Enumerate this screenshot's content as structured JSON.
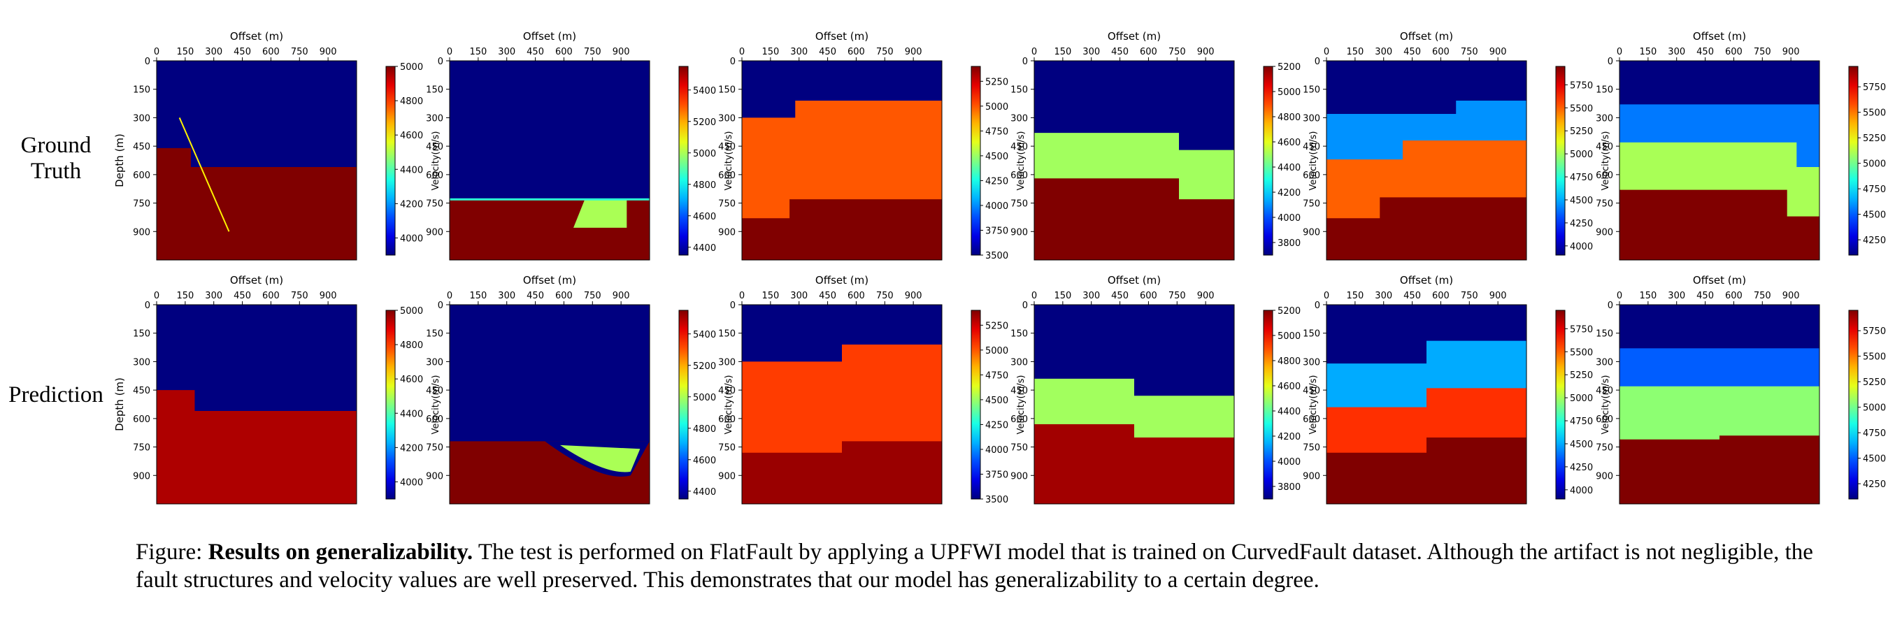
{
  "figure": {
    "row_labels": [
      {
        "lines": [
          "Ground",
          "Truth"
        ]
      },
      {
        "lines": [
          "Prediction"
        ]
      }
    ],
    "caption": {
      "prefix": "Figure: ",
      "bold": "Results on generalizability.",
      "text": " The test is performed on FlatFault by applying a UPFWI model that is trained on CurvedFault dataset. Although the artifact is not negligible, the fault structures and velocity values are well preserved. This demonstrates that our model has generalizability to a certain degree."
    }
  },
  "chart_data": {
    "type": "heatmap",
    "xlabel": "Offset (m)",
    "ylabel": "Depth (m)",
    "colorbar_label": "Velocity(m/s)",
    "x_range_m": [
      0,
      1050
    ],
    "y_range_m": [
      0,
      1050
    ],
    "x_ticks": [
      0,
      150,
      300,
      450,
      600,
      750,
      900
    ],
    "y_ticks": [
      0,
      150,
      300,
      450,
      600,
      750,
      900
    ],
    "colormap": "jet",
    "ylabel_shown_on": [
      "r0c0",
      "r1c0"
    ],
    "panels": [
      {
        "id": "r0c0",
        "row": "Ground Truth",
        "col": 1,
        "vmin": 3900,
        "vmax": 5000,
        "cbar_ticks": [
          4000,
          4200,
          4400,
          4600,
          4800,
          5000
        ],
        "description": "Two layers: upper ~3900 m/s, lower ~5000 m/s; boundary at ~460 m depth left of ~180 m offset, ~560 m right of it; thin dipping fault line from (120,300) to (380,900)",
        "layers": [
          {
            "velocity": 3900,
            "top_left": 0,
            "top_right": 0
          },
          {
            "velocity": 5000,
            "top_left": 460,
            "top_right": 560,
            "fault_offset": 180
          }
        ],
        "fault_line": [
          [
            120,
            300
          ],
          [
            380,
            900
          ]
        ]
      },
      {
        "id": "r0c1",
        "row": "Ground Truth",
        "col": 2,
        "vmin": 4350,
        "vmax": 5550,
        "cbar_ticks": [
          4400,
          4600,
          4800,
          5000,
          5200,
          5400
        ],
        "description": "Upper ~4350 m/s down to ~730 m, lower ~5550 m/s; green (~5000) wedge between 650-930 m offset, depth 730-880 m",
        "layers": [
          {
            "velocity": 4350,
            "top": 0
          },
          {
            "velocity": 5550,
            "top": 730
          }
        ],
        "wedge": {
          "velocity": 5000,
          "x": [
            650,
            930
          ],
          "y": [
            730,
            880
          ]
        },
        "boundary_line": {
          "velocity": 4850,
          "y": 725
        }
      },
      {
        "id": "r0c2",
        "row": "Ground Truth",
        "col": 3,
        "vmin": 3500,
        "vmax": 5400,
        "cbar_ticks": [
          3500,
          3750,
          4000,
          4250,
          4500,
          4750,
          5000,
          5250
        ],
        "description": "Three layers: ~3500 (top), ~5000 yellow, ~5400 red; fault at ~250-350 m offset",
        "layers": [
          {
            "velocity": 3500,
            "top_left": 0,
            "top_right": 0
          },
          {
            "velocity": 5000,
            "top_left": 300,
            "top_right": 210,
            "fault_offset": 280
          },
          {
            "velocity": 5400,
            "top_left": 830,
            "top_right": 730,
            "fault_offset": 250
          }
        ]
      },
      {
        "id": "r0c3",
        "row": "Ground Truth",
        "col": 4,
        "vmin": 3700,
        "vmax": 5200,
        "cbar_ticks": [
          3800,
          4000,
          4200,
          4400,
          4600,
          4800,
          5000,
          5200
        ],
        "description": "Three layers: ~3700, ~4500 green, ~5200 red; fault at ~760 m offset",
        "layers": [
          {
            "velocity": 3700,
            "top_left": 0,
            "top_right": 0
          },
          {
            "velocity": 4500,
            "top_left": 380,
            "top_right": 470,
            "fault_offset": 760
          },
          {
            "velocity": 5200,
            "top_left": 620,
            "top_right": 730,
            "fault_offset": 760
          }
        ]
      },
      {
        "id": "r0c4",
        "row": "Ground Truth",
        "col": 5,
        "vmin": 3900,
        "vmax": 5950,
        "cbar_ticks": [
          4000,
          4250,
          4500,
          4750,
          5000,
          5250,
          5500,
          5750
        ],
        "description": "Four layers: ~3900, ~4450 light blue, ~5500 yellow, ~5950 red; dipping fault near 300-700 m offset",
        "layers": [
          {
            "velocity": 3900,
            "top_left": 0,
            "top_right": 0
          },
          {
            "velocity": 4450,
            "top_left": 280,
            "top_right": 210,
            "fault_offset": 680
          },
          {
            "velocity": 5500,
            "top_left": 520,
            "top_right": 420,
            "fault_offset": 400
          },
          {
            "velocity": 5950,
            "top_left": 830,
            "top_right": 720,
            "fault_offset": 280
          }
        ]
      },
      {
        "id": "r0c5",
        "row": "Ground Truth",
        "col": 6,
        "vmin": 4100,
        "vmax": 5950,
        "cbar_ticks": [
          4250,
          4500,
          4750,
          5000,
          5250,
          5500,
          5750
        ],
        "description": "Four layers: ~4100, ~4550 light blue, ~5100 cyan-green, ~5950 red; fault near 850-930 m offset",
        "layers": [
          {
            "velocity": 4100,
            "top_left": 0,
            "top_right": 0
          },
          {
            "velocity": 4550,
            "top_left": 230,
            "top_right": 230
          },
          {
            "velocity": 5100,
            "top_left": 430,
            "top_right": 560,
            "fault_offset": 930
          },
          {
            "velocity": 5950,
            "top_left": 680,
            "top_right": 820,
            "fault_offset": 880
          }
        ]
      },
      {
        "id": "r1c0",
        "row": "Prediction",
        "col": 1,
        "vmin": 3900,
        "vmax": 5000,
        "cbar_ticks": [
          4000,
          4200,
          4400,
          4600,
          4800,
          5000
        ],
        "description": "Predicted: boundary ~450 m at left, step to ~560 m near 200 m offset, slightly smooth, red ~4950 below",
        "layers": [
          {
            "velocity": 3900,
            "top_left": 0,
            "top_right": 0
          },
          {
            "velocity": 4950,
            "top_left": 450,
            "top_right": 560,
            "fault_offset": 200
          }
        ]
      },
      {
        "id": "r1c1",
        "row": "Prediction",
        "col": 2,
        "vmin": 4350,
        "vmax": 5550,
        "cbar_ticks": [
          4400,
          4600,
          4800,
          5000,
          5200,
          5400
        ],
        "description": "Predicted: upper ~4350 down to ~720 m, bowl of red dipping to ~900 m near 900 m offset with green rim",
        "layers": [
          {
            "velocity": 4350,
            "top": 0
          },
          {
            "velocity": 5550,
            "top": 720
          }
        ],
        "bowl": {
          "x": [
            500,
            1050
          ],
          "bottom": 900
        }
      },
      {
        "id": "r1c2",
        "row": "Prediction",
        "col": 3,
        "vmin": 3500,
        "vmax": 5400,
        "cbar_ticks": [
          3500,
          3750,
          4000,
          4250,
          4500,
          4750,
          5000,
          5250
        ],
        "description": "Predicted: blue top down to ~200-300 m, orange-yellow ~5000, red ~5300 from ~750 m; smoothed boundaries",
        "layers": [
          {
            "velocity": 3500,
            "top": 0
          },
          {
            "velocity": 5050,
            "top_left": 300,
            "top_right": 210
          },
          {
            "velocity": 5350,
            "top_left": 780,
            "top_right": 720
          }
        ]
      },
      {
        "id": "r1c3",
        "row": "Prediction",
        "col": 4,
        "vmin": 3700,
        "vmax": 5200,
        "cbar_ticks": [
          3800,
          4000,
          4200,
          4400,
          4600,
          4800,
          5000,
          5200
        ],
        "description": "Predicted: blue top, green from ~390 m, red from ~630 m (left) to ~700 m (right)",
        "layers": [
          {
            "velocity": 3700,
            "top": 0
          },
          {
            "velocity": 4500,
            "top_left": 390,
            "top_right": 480
          },
          {
            "velocity": 5150,
            "top_left": 630,
            "top_right": 700
          }
        ]
      },
      {
        "id": "r1c4",
        "row": "Prediction",
        "col": 5,
        "vmin": 3900,
        "vmax": 5950,
        "cbar_ticks": [
          4000,
          4250,
          4500,
          4750,
          5000,
          5250,
          5500,
          5750
        ],
        "description": "Predicted: wavy layers; blue, light blue from ~200 m, yellow from ~450-550 m, red from ~720 m",
        "layers": [
          {
            "velocity": 3900,
            "top": 0
          },
          {
            "velocity": 4500,
            "top_left": 310,
            "top_right": 190
          },
          {
            "velocity": 5600,
            "top_left": 540,
            "top_right": 440
          },
          {
            "velocity": 5950,
            "top_left": 780,
            "top_right": 700
          }
        ]
      },
      {
        "id": "r1c5",
        "row": "Prediction",
        "col": 6,
        "vmin": 4100,
        "vmax": 5950,
        "cbar_ticks": [
          4250,
          4500,
          4750,
          5000,
          5250,
          5500,
          5750
        ],
        "description": "Predicted: blue top, light blue band ~230-420 m, cyan ~420-690 m, red below ~700 m",
        "layers": [
          {
            "velocity": 4100,
            "top": 0
          },
          {
            "velocity": 4500,
            "top": 230
          },
          {
            "velocity": 5050,
            "top": 430
          },
          {
            "velocity": 5950,
            "top_left": 710,
            "top_right": 690
          }
        ]
      }
    ]
  }
}
